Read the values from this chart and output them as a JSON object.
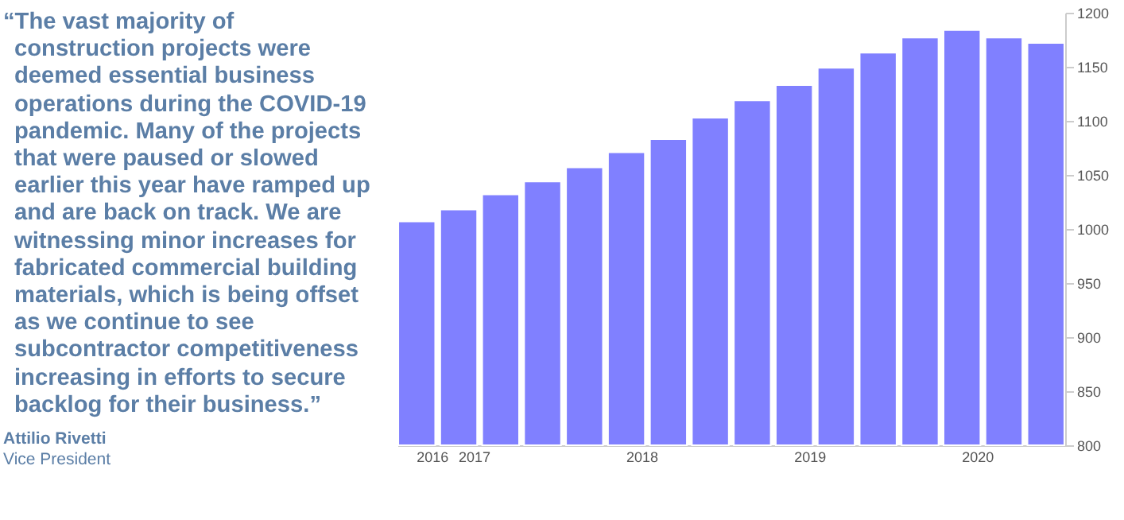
{
  "chart_data": {
    "type": "bar",
    "categories": [
      "2016",
      "2017",
      null,
      null,
      null,
      "2018",
      null,
      null,
      null,
      "2019",
      null,
      null,
      null,
      "2020",
      null,
      null
    ],
    "values": [
      1007,
      1018,
      1032,
      1044,
      1057,
      1071,
      1083,
      1103,
      1119,
      1133,
      1149,
      1163,
      1177,
      1184,
      1177,
      1172
    ],
    "color": "#8080ff",
    "ylim": [
      800,
      1200
    ],
    "yticks": [
      800,
      850,
      900,
      950,
      1000,
      1050,
      1100,
      1150,
      1200
    ],
    "grid": false,
    "annotations": [
      "“The vast majority of construction projects were deemed essential business operations during the COVID-19 pandemic. Many of the projects that were paused or slowed earlier this year have ramped up and are back on track. We are witnessing minor increases for fabricated commercial building materials, which is being offset as we continue to see subcontractor competitiveness increasing in efforts to secure backlog for their business.”",
      "Attilio Rivetti",
      "Vice President"
    ]
  }
}
